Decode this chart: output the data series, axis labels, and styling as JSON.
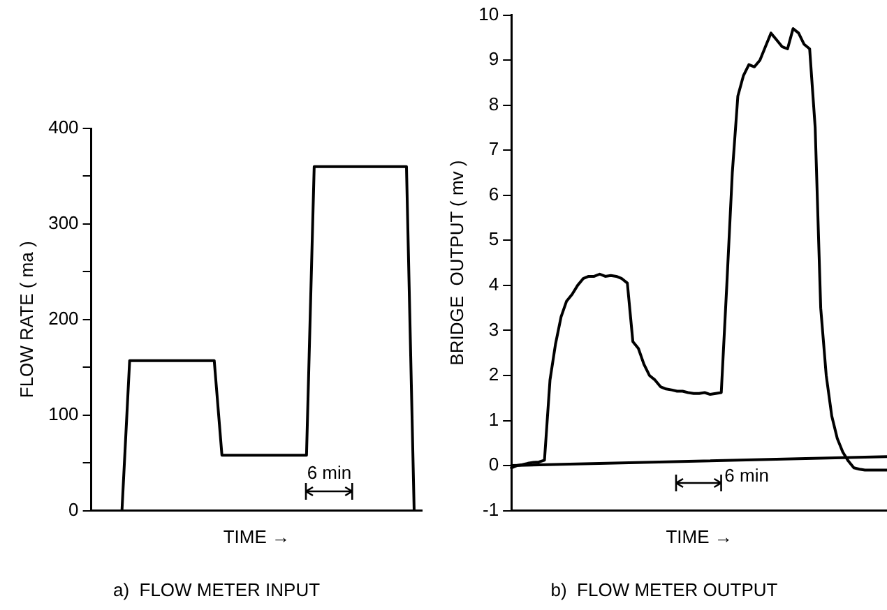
{
  "chart_data": [
    {
      "type": "line",
      "title": "a)  FLOW METER INPUT",
      "xlabel": "TIME →",
      "ylabel": "FLOW RATE ( ma )",
      "categories": [
        null,
        null,
        null,
        null,
        null,
        null,
        null,
        null,
        null,
        null,
        null,
        null,
        null,
        null,
        null,
        null,
        null,
        null,
        null,
        null,
        null,
        null,
        null,
        null,
        null,
        null,
        null,
        null,
        null,
        null,
        null,
        null,
        null,
        null,
        null,
        null,
        null,
        null,
        null,
        null,
        null,
        null,
        null,
        null
      ],
      "series": [
        {
          "color": "#000000",
          "values": [
            null,
            null,
            null,
            null,
            0,
            157,
            157,
            157,
            157,
            157,
            157,
            157,
            157,
            157,
            157,
            157,
            157,
            58,
            58,
            58,
            58,
            58,
            58,
            58,
            58,
            58,
            58,
            58,
            58,
            360,
            360,
            360,
            360,
            360,
            360,
            360,
            360,
            360,
            360,
            360,
            360,
            360,
            0,
            null
          ]
        }
      ],
      "ylim": [
        0,
        400
      ],
      "yticks": [
        0,
        {
          "value": 50,
          "label": null
        },
        100,
        {
          "value": 150,
          "label": null
        },
        200,
        {
          "value": 250,
          "label": null
        },
        300,
        {
          "value": 350,
          "label": null
        },
        400
      ],
      "tick_labels": "y",
      "annotations": [
        "6 min"
      ]
    },
    {
      "type": "line",
      "title": "b)  FLOW METER OUTPUT",
      "xlabel": "TIME →",
      "ylabel": "BRIDGE  OUTPUT ( mv )",
      "categories": [
        null,
        null,
        null,
        null,
        null,
        null,
        null,
        null,
        null,
        null,
        null,
        null,
        null,
        null,
        null,
        null,
        null,
        null,
        null,
        null,
        null,
        null,
        null,
        null,
        null,
        null,
        null,
        null,
        null,
        null,
        null,
        null,
        null,
        null,
        null,
        null,
        null,
        null,
        null,
        null,
        null,
        null,
        null,
        null,
        null,
        null,
        null,
        null,
        null,
        null,
        null,
        null,
        null,
        null,
        null,
        null,
        null,
        null,
        null,
        null,
        null,
        null,
        null,
        null,
        null,
        null,
        null,
        null,
        null
      ],
      "series": [
        {
          "color": "#000000",
          "values": [
            -0.05,
            0,
            0.02,
            0.05,
            0.07,
            0.08,
            0.12,
            1.9,
            2.7,
            3.3,
            3.65,
            3.8,
            4.0,
            4.15,
            4.2,
            4.2,
            4.25,
            4.2,
            4.22,
            4.2,
            4.15,
            4.05,
            2.75,
            2.6,
            2.25,
            2.0,
            1.9,
            1.75,
            1.7,
            1.68,
            1.65,
            1.65,
            1.62,
            1.6,
            1.6,
            1.62,
            1.58,
            1.6,
            1.62,
            4.0,
            6.5,
            8.2,
            8.65,
            8.9,
            8.85,
            9.0,
            9.3,
            9.6,
            9.45,
            9.3,
            9.25,
            9.7,
            9.6,
            9.35,
            9.25,
            7.5,
            3.5,
            2.0,
            1.1,
            0.6,
            0.3,
            0.1,
            -0.05,
            -0.08,
            -0.1,
            -0.1,
            -0.1,
            -0.1,
            -0.1
          ]
        },
        {
          "color": "#000000",
          "values": [
            0,
            null,
            null,
            null,
            null,
            null,
            null,
            null,
            null,
            null,
            null,
            null,
            null,
            null,
            null,
            null,
            null,
            null,
            null,
            null,
            null,
            null,
            null,
            null,
            null,
            null,
            null,
            null,
            null,
            null,
            null,
            null,
            null,
            null,
            null,
            null,
            null,
            null,
            null,
            null,
            null,
            null,
            null,
            null,
            null,
            null,
            null,
            null,
            null,
            null,
            null,
            null,
            null,
            null,
            null,
            null,
            null,
            null,
            null,
            null,
            null,
            null,
            null,
            null,
            null,
            null,
            null,
            null,
            0.2
          ]
        }
      ],
      "ylim": [
        -1,
        10
      ],
      "yticks": [
        -1,
        0,
        1,
        2,
        3,
        4,
        5,
        6,
        7,
        8,
        9,
        10
      ],
      "tick_labels": "y",
      "annotations": [
        "6 min"
      ]
    }
  ]
}
